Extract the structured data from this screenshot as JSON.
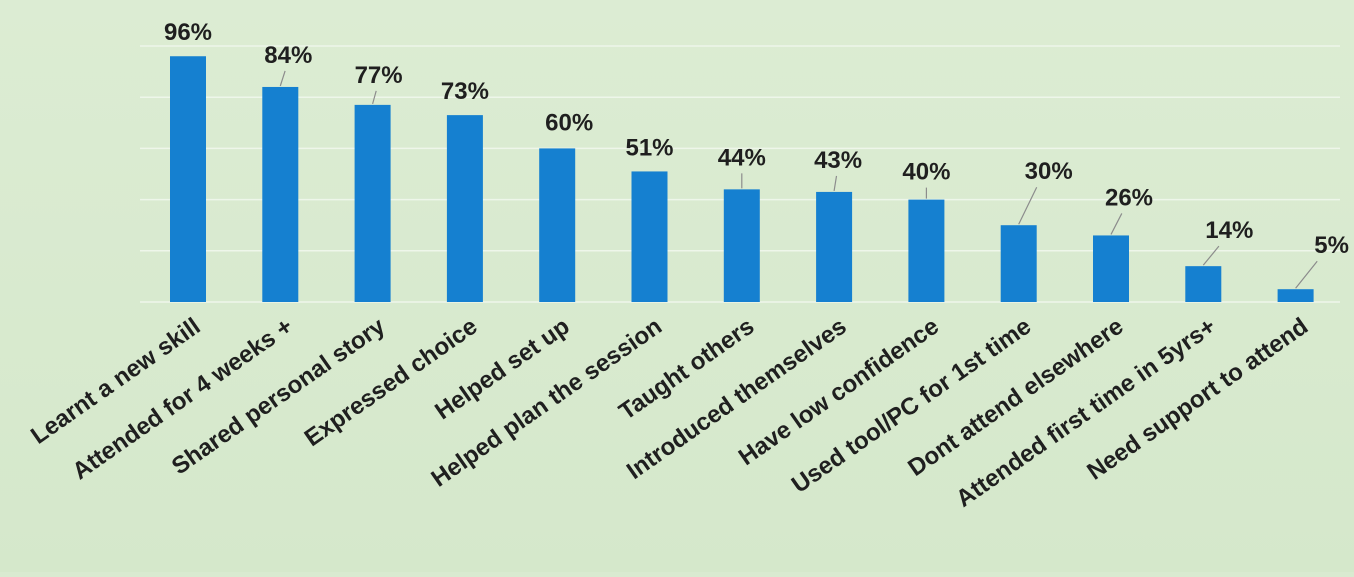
{
  "chart_data": {
    "type": "bar",
    "title": "",
    "xlabel": "",
    "ylabel": "",
    "ylim": [
      0,
      100
    ],
    "grid": true,
    "legend": "none",
    "bar_color": "#1580d0",
    "categories": [
      "Learnt a new skill",
      "Attended for 4 weeks +",
      "Shared personal story",
      "Expressed choice",
      "Helped set up",
      "Helped plan the session",
      "Taught others",
      "Introduced themselves",
      "Have low confidence",
      "Used tool/PC for 1st time",
      "Dont attend elsewhere",
      "Attended first time in 5yrs+",
      "Need support to attend"
    ],
    "values": [
      96,
      84,
      77,
      73,
      60,
      51,
      44,
      43,
      40,
      30,
      26,
      14,
      5
    ],
    "data_labels": [
      "96%",
      "84%",
      "77%",
      "73%",
      "60%",
      "51%",
      "44%",
      "43%",
      "40%",
      "30%",
      "26%",
      "14%",
      "5%"
    ]
  }
}
